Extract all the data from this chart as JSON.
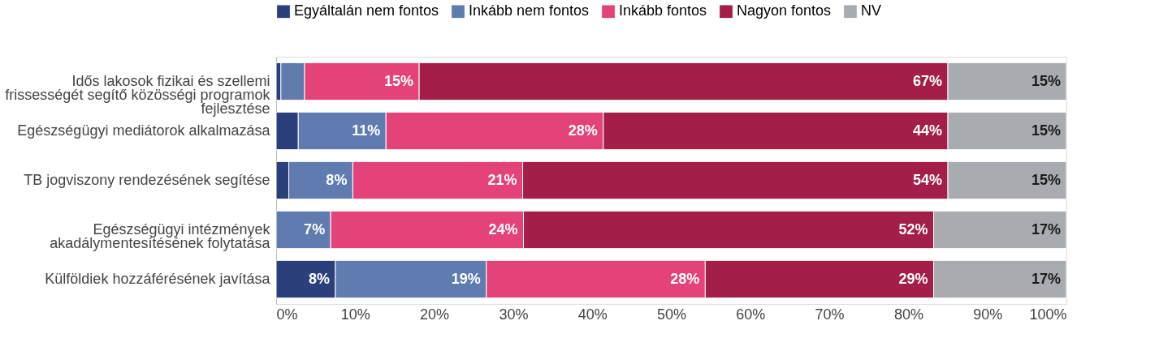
{
  "chart_data": {
    "type": "bar",
    "orientation": "horizontal",
    "stacked": true,
    "categories": [
      "Idős lakosok fizikai és szellemi frissességét segítő közösségi programok fejlesztése",
      "Egészségügyi mediátorok alkalmazása",
      "TB jogviszony rendezésének segítése",
      "Egészségügyi intézmények akadálymentesítésének folytatása",
      "Külföldiek hozzáférésének javítása"
    ],
    "series": [
      {
        "name": "Egyáltalán nem fontos",
        "color": "#2b3f7a",
        "values": [
          0.6,
          2.8,
          1.6,
          0,
          7.5
        ],
        "value_labels": [
          null,
          null,
          null,
          null,
          "8%"
        ]
      },
      {
        "name": "Inkább nem fontos",
        "color": "#5f7bb0",
        "values": [
          3.0,
          11.1,
          8.1,
          6.9,
          19.1
        ],
        "value_labels": [
          null,
          "11%",
          "8%",
          "7%",
          "19%"
        ]
      },
      {
        "name": "Inkább fontos",
        "color": "#e4437a",
        "values": [
          14.5,
          27.5,
          21.5,
          24.4,
          27.7
        ],
        "value_labels": [
          "15%",
          "28%",
          "21%",
          "24%",
          "28%"
        ]
      },
      {
        "name": "Nagyon fontos",
        "color": "#a31f47",
        "values": [
          66.9,
          43.6,
          53.8,
          51.9,
          28.9
        ],
        "value_labels": [
          "67%",
          "44%",
          "54%",
          "52%",
          "29%"
        ]
      },
      {
        "name": "NV",
        "color": "#a8acb0",
        "values": [
          15,
          15,
          15,
          16.8,
          16.8
        ],
        "value_labels": [
          "15%",
          "15%",
          "15%",
          "17%",
          "17%"
        ]
      }
    ],
    "xlim": [
      0,
      100
    ],
    "xticks": [
      {
        "value": 0,
        "label": "0%"
      },
      {
        "value": 10,
        "label": "10%"
      },
      {
        "value": 20,
        "label": "20%"
      },
      {
        "value": 30,
        "label": "30%"
      },
      {
        "value": 40,
        "label": "40%"
      },
      {
        "value": 50,
        "label": "50%"
      },
      {
        "value": 60,
        "label": "60%"
      },
      {
        "value": 70,
        "label": "70%"
      },
      {
        "value": 80,
        "label": "80%"
      },
      {
        "value": 90,
        "label": "90%"
      },
      {
        "value": 100,
        "label": "100%"
      }
    ],
    "grid": false,
    "legend": "top left"
  }
}
